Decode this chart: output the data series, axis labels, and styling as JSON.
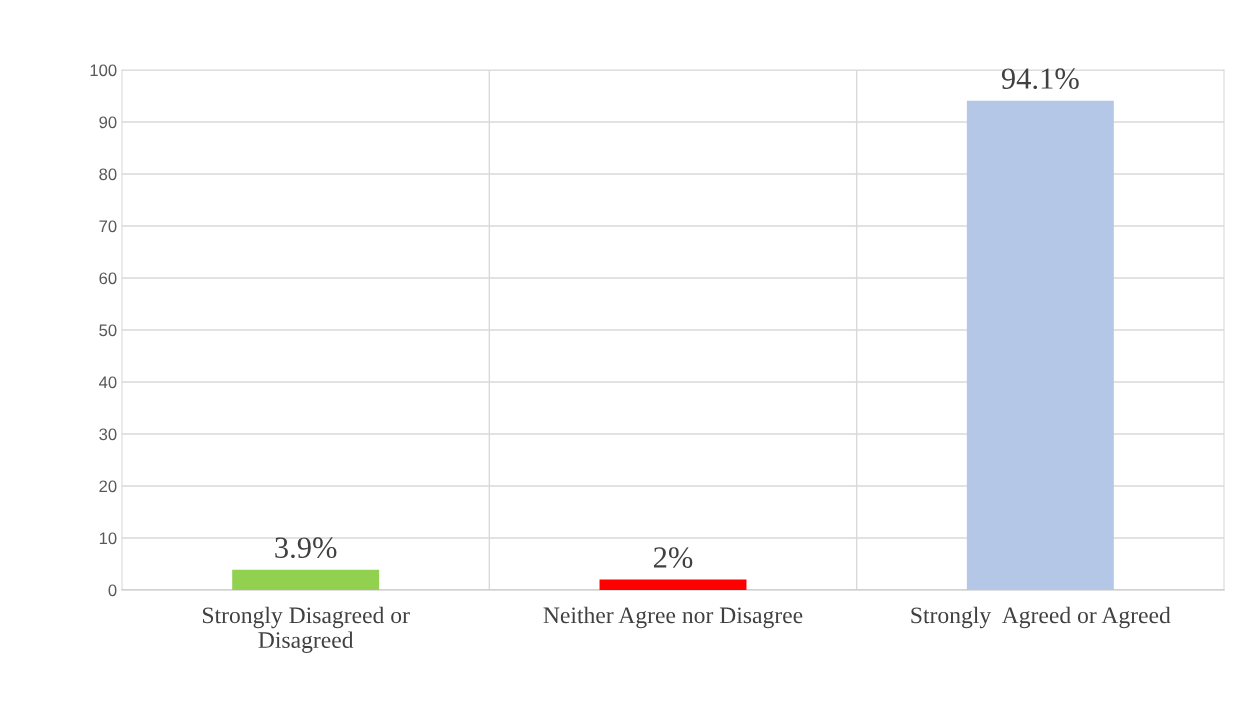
{
  "chart_data": {
    "type": "bar",
    "categories": [
      "Strongly Disagreed or Disagreed",
      "Neither Agree nor Disagree",
      "Strongly  Agreed or Agreed"
    ],
    "values": [
      3.9,
      2,
      94.1
    ],
    "colors": [
      "#92d050",
      "#ff0000",
      "#b4c7e7"
    ],
    "value_labels": [
      "3.9%",
      "2%",
      "94.1%"
    ],
    "ylim": [
      0,
      100
    ],
    "yticks": [
      0,
      10,
      20,
      30,
      40,
      50,
      60,
      70,
      80,
      90,
      100
    ],
    "grid": true,
    "legend": false
  }
}
